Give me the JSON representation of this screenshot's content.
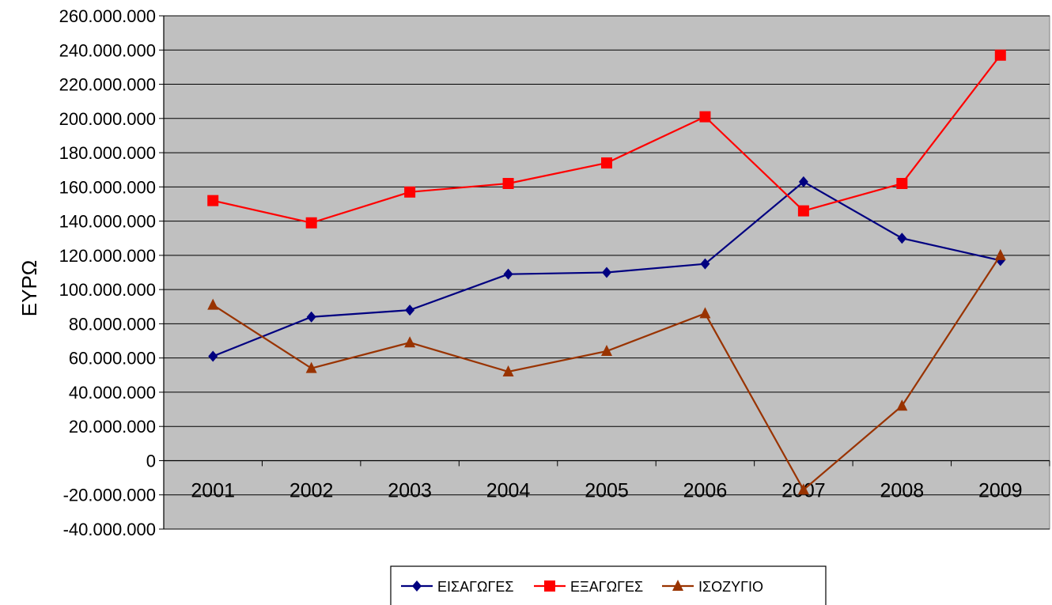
{
  "chart_data": {
    "type": "line",
    "title": "",
    "xlabel": "",
    "ylabel": "ΕΥΡΩ",
    "categories": [
      "2001",
      "2002",
      "2003",
      "2004",
      "2005",
      "2006",
      "2007",
      "2008",
      "2009"
    ],
    "ylim": [
      -40000000,
      260000000
    ],
    "yticks": [
      {
        "value": 260000000,
        "label": "260.000.000"
      },
      {
        "value": 240000000,
        "label": "240.000.000"
      },
      {
        "value": 220000000,
        "label": "220.000.000"
      },
      {
        "value": 200000000,
        "label": "200.000.000"
      },
      {
        "value": 180000000,
        "label": "180.000.000"
      },
      {
        "value": 160000000,
        "label": "160.000.000"
      },
      {
        "value": 140000000,
        "label": "140.000.000"
      },
      {
        "value": 120000000,
        "label": "120.000.000"
      },
      {
        "value": 100000000,
        "label": "100.000.000"
      },
      {
        "value": 80000000,
        "label": "80.000.000"
      },
      {
        "value": 60000000,
        "label": "60.000.000"
      },
      {
        "value": 40000000,
        "label": "40.000.000"
      },
      {
        "value": 20000000,
        "label": "20.000.000"
      },
      {
        "value": 0,
        "label": "0"
      },
      {
        "value": -20000000,
        "label": "-20.000.000"
      },
      {
        "value": -40000000,
        "label": "-40.000.000"
      }
    ],
    "grid": true,
    "background_color": "#c0c0c0",
    "legend_position": "bottom",
    "series": [
      {
        "name": "ΕΙΣΑΓΩΓΕΣ",
        "color": "#000080",
        "marker": "diamond",
        "values": [
          61000000,
          84000000,
          88000000,
          109000000,
          110000000,
          115000000,
          163000000,
          130000000,
          117000000
        ]
      },
      {
        "name": "ΕΞΑΓΩΓΕΣ",
        "color": "#ff0000",
        "marker": "square",
        "values": [
          152000000,
          139000000,
          157000000,
          162000000,
          174000000,
          201000000,
          146000000,
          162000000,
          237000000
        ]
      },
      {
        "name": "ΙΣΟΖΥΓΙΟ",
        "color": "#993300",
        "marker": "triangle",
        "values": [
          91000000,
          54000000,
          69000000,
          52000000,
          64000000,
          86000000,
          -17000000,
          32000000,
          120000000
        ]
      }
    ]
  }
}
